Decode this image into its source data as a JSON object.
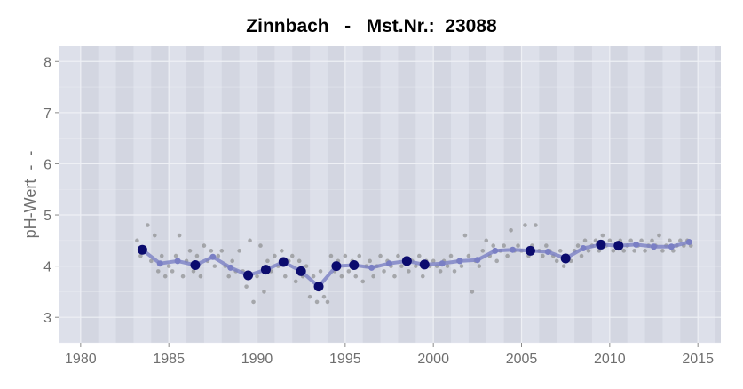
{
  "chart_data": {
    "type": "scatter",
    "title": "Zinnbach   -   Mst.Nr.:  23088",
    "xlabel": "",
    "ylabel": "pH-Wert  -  -",
    "xlim": [
      1978.8,
      2016.3
    ],
    "ylim": [
      2.5,
      8.3
    ],
    "x_ticks": [
      1980,
      1985,
      1990,
      1995,
      2000,
      2005,
      2010,
      2015
    ],
    "y_ticks": [
      3,
      4,
      5,
      6,
      7,
      8
    ],
    "grid": true,
    "legend": "none",
    "colors": {
      "panel": "#dde0ea",
      "panel_stripe": "#d3d6e1",
      "grid": "#eef0f5",
      "points": "#808080",
      "mean_line": "#7a7fc4",
      "mean_points": "#0b0b6e"
    },
    "series": [
      {
        "role": "annual-mean",
        "x": [
          1983.5,
          1984.5,
          1985.5,
          1986.5,
          1987.5,
          1988.5,
          1989.5,
          1990.5,
          1991.5,
          1992.5,
          1993.5,
          1994.5,
          1995.5,
          1996.5,
          1997.5,
          1998.5,
          1999.5,
          2000.5,
          2001.5,
          2002.5,
          2003.5,
          2004.5,
          2005.5,
          2006.5,
          2007.5,
          2008.5,
          2009.5,
          2010.5,
          2011.5,
          2012.5,
          2013.5,
          2014.5
        ],
        "y": [
          4.32,
          4.05,
          4.1,
          4.02,
          4.18,
          3.97,
          3.82,
          3.93,
          4.08,
          3.9,
          3.6,
          4.0,
          4.02,
          3.97,
          4.05,
          4.1,
          4.03,
          4.05,
          4.1,
          4.12,
          4.3,
          4.32,
          4.3,
          4.28,
          4.15,
          4.35,
          4.42,
          4.4,
          4.42,
          4.38,
          4.38,
          4.47
        ],
        "marked": [
          true,
          false,
          false,
          true,
          false,
          false,
          true,
          true,
          true,
          true,
          true,
          true,
          true,
          false,
          false,
          true,
          true,
          false,
          false,
          false,
          false,
          false,
          true,
          false,
          true,
          false,
          true,
          true,
          false,
          false,
          false,
          false
        ]
      },
      {
        "role": "samples",
        "points": [
          [
            1983.2,
            4.5
          ],
          [
            1983.4,
            4.2
          ],
          [
            1983.6,
            4.3
          ],
          [
            1983.8,
            4.8
          ],
          [
            1984.0,
            4.1
          ],
          [
            1984.2,
            4.6
          ],
          [
            1984.4,
            3.9
          ],
          [
            1984.6,
            4.2
          ],
          [
            1984.8,
            3.8
          ],
          [
            1985.0,
            4.0
          ],
          [
            1985.2,
            3.9
          ],
          [
            1985.4,
            4.2
          ],
          [
            1985.6,
            4.6
          ],
          [
            1985.8,
            3.8
          ],
          [
            1986.0,
            4.1
          ],
          [
            1986.2,
            4.3
          ],
          [
            1986.4,
            3.9
          ],
          [
            1986.6,
            4.2
          ],
          [
            1986.8,
            3.8
          ],
          [
            1987.0,
            4.4
          ],
          [
            1987.2,
            4.1
          ],
          [
            1987.4,
            4.3
          ],
          [
            1987.6,
            4.0
          ],
          [
            1987.8,
            4.2
          ],
          [
            1988.0,
            4.3
          ],
          [
            1988.2,
            4.0
          ],
          [
            1988.4,
            3.8
          ],
          [
            1988.6,
            4.1
          ],
          [
            1988.8,
            3.9
          ],
          [
            1989.0,
            4.3
          ],
          [
            1989.2,
            3.9
          ],
          [
            1989.4,
            3.6
          ],
          [
            1989.6,
            4.5
          ],
          [
            1989.8,
            3.3
          ],
          [
            1990.0,
            3.8
          ],
          [
            1990.2,
            4.4
          ],
          [
            1990.4,
            3.5
          ],
          [
            1990.6,
            4.1
          ],
          [
            1990.8,
            3.9
          ],
          [
            1991.0,
            4.2
          ],
          [
            1991.2,
            4.0
          ],
          [
            1991.4,
            4.3
          ],
          [
            1991.6,
            3.8
          ],
          [
            1991.8,
            4.1
          ],
          [
            1992.0,
            4.2
          ],
          [
            1992.2,
            3.7
          ],
          [
            1992.4,
            4.1
          ],
          [
            1992.6,
            3.8
          ],
          [
            1992.8,
            4.0
          ],
          [
            1993.0,
            3.4
          ],
          [
            1993.2,
            3.8
          ],
          [
            1993.4,
            3.3
          ],
          [
            1993.6,
            3.9
          ],
          [
            1993.8,
            3.4
          ],
          [
            1994.0,
            3.3
          ],
          [
            1994.2,
            4.2
          ],
          [
            1994.4,
            3.9
          ],
          [
            1994.6,
            4.1
          ],
          [
            1994.8,
            3.8
          ],
          [
            1995.0,
            4.2
          ],
          [
            1995.2,
            3.9
          ],
          [
            1995.4,
            4.1
          ],
          [
            1995.6,
            3.8
          ],
          [
            1995.8,
            4.2
          ],
          [
            1996.0,
            3.7
          ],
          [
            1996.2,
            4.0
          ],
          [
            1996.4,
            4.1
          ],
          [
            1996.6,
            3.8
          ],
          [
            1996.8,
            4.0
          ],
          [
            1997.0,
            4.2
          ],
          [
            1997.2,
            3.9
          ],
          [
            1997.4,
            4.1
          ],
          [
            1997.6,
            4.0
          ],
          [
            1997.8,
            3.8
          ],
          [
            1998.0,
            4.2
          ],
          [
            1998.2,
            4.0
          ],
          [
            1998.4,
            4.1
          ],
          [
            1998.6,
            3.9
          ],
          [
            1998.8,
            4.1
          ],
          [
            1999.0,
            4.0
          ],
          [
            1999.2,
            4.2
          ],
          [
            1999.4,
            3.8
          ],
          [
            1999.6,
            4.1
          ],
          [
            1999.8,
            4.0
          ],
          [
            2000.0,
            4.1
          ],
          [
            2000.2,
            4.0
          ],
          [
            2000.4,
            3.9
          ],
          [
            2000.6,
            4.1
          ],
          [
            2000.8,
            4.0
          ],
          [
            2001.0,
            4.2
          ],
          [
            2001.2,
            3.9
          ],
          [
            2001.4,
            4.1
          ],
          [
            2001.6,
            4.0
          ],
          [
            2001.8,
            4.6
          ],
          [
            2002.0,
            4.2
          ],
          [
            2002.2,
            3.5
          ],
          [
            2002.4,
            4.1
          ],
          [
            2002.6,
            4.0
          ],
          [
            2002.8,
            4.3
          ],
          [
            2003.0,
            4.5
          ],
          [
            2003.2,
            4.2
          ],
          [
            2003.4,
            4.4
          ],
          [
            2003.6,
            4.1
          ],
          [
            2003.8,
            4.3
          ],
          [
            2004.0,
            4.4
          ],
          [
            2004.2,
            4.2
          ],
          [
            2004.4,
            4.7
          ],
          [
            2004.6,
            4.3
          ],
          [
            2004.8,
            4.4
          ],
          [
            2005.0,
            4.3
          ],
          [
            2005.2,
            4.8
          ],
          [
            2005.4,
            4.2
          ],
          [
            2005.6,
            4.4
          ],
          [
            2005.8,
            4.8
          ],
          [
            2006.0,
            4.3
          ],
          [
            2006.2,
            4.2
          ],
          [
            2006.4,
            4.4
          ],
          [
            2006.6,
            4.3
          ],
          [
            2006.8,
            4.2
          ],
          [
            2007.0,
            4.1
          ],
          [
            2007.2,
            4.3
          ],
          [
            2007.4,
            4.0
          ],
          [
            2007.6,
            4.2
          ],
          [
            2007.8,
            4.1
          ],
          [
            2008.0,
            4.3
          ],
          [
            2008.2,
            4.4
          ],
          [
            2008.4,
            4.2
          ],
          [
            2008.6,
            4.5
          ],
          [
            2008.8,
            4.3
          ],
          [
            2009.0,
            4.4
          ],
          [
            2009.2,
            4.5
          ],
          [
            2009.4,
            4.3
          ],
          [
            2009.6,
            4.6
          ],
          [
            2009.8,
            4.4
          ],
          [
            2010.0,
            4.5
          ],
          [
            2010.2,
            4.3
          ],
          [
            2010.4,
            4.4
          ],
          [
            2010.6,
            4.5
          ],
          [
            2010.8,
            4.3
          ],
          [
            2011.0,
            4.4
          ],
          [
            2011.2,
            4.5
          ],
          [
            2011.4,
            4.3
          ],
          [
            2011.6,
            4.4
          ],
          [
            2011.8,
            4.5
          ],
          [
            2012.0,
            4.3
          ],
          [
            2012.2,
            4.4
          ],
          [
            2012.4,
            4.5
          ],
          [
            2012.6,
            4.4
          ],
          [
            2012.8,
            4.6
          ],
          [
            2013.0,
            4.3
          ],
          [
            2013.2,
            4.4
          ],
          [
            2013.4,
            4.5
          ],
          [
            2013.6,
            4.3
          ],
          [
            2013.8,
            4.4
          ],
          [
            2014.0,
            4.5
          ],
          [
            2014.2,
            4.4
          ],
          [
            2014.4,
            4.5
          ],
          [
            2014.6,
            4.4
          ]
        ]
      }
    ]
  }
}
